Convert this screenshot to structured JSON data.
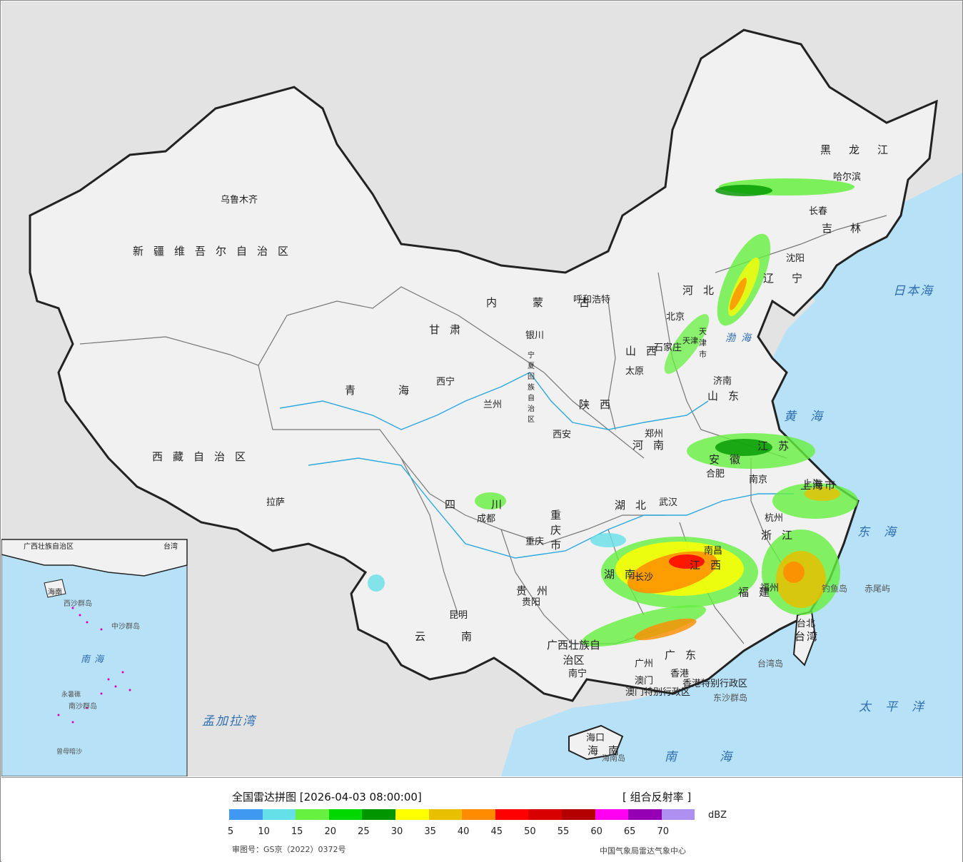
{
  "map": {
    "title_date": "全国雷达拼图 [2026-04-03 08:00:00]",
    "product": "[ 组合反射率 ]",
    "unit": "dBZ",
    "approval_number": "审图号：GS京（2022）0372号",
    "agency": "中国气象局雷达气象中心",
    "scale": {
      "colors": [
        "#3f99f0",
        "#66e0e8",
        "#66f040",
        "#00d800",
        "#009600",
        "#ffff00",
        "#e8c000",
        "#ff8c00",
        "#ff0000",
        "#d80000",
        "#b40000",
        "#ff00f0",
        "#9600b4",
        "#ad90f0"
      ],
      "ticks": [
        "5",
        "10",
        "15",
        "20",
        "25",
        "30",
        "35",
        "40",
        "45",
        "50",
        "55",
        "60",
        "65",
        "70"
      ]
    },
    "cities": [
      {
        "name": "乌鲁木齐"
      },
      {
        "name": "拉萨"
      },
      {
        "name": "西宁"
      },
      {
        "name": "兰州"
      },
      {
        "name": "银川"
      },
      {
        "name": "呼和浩特"
      },
      {
        "name": "北京"
      },
      {
        "name": "天津"
      },
      {
        "name": "石家庄"
      },
      {
        "name": "太原"
      },
      {
        "name": "济南"
      },
      {
        "name": "郑州"
      },
      {
        "name": "西安"
      },
      {
        "name": "成都"
      },
      {
        "name": "重庆"
      },
      {
        "name": "武汉"
      },
      {
        "name": "合肥"
      },
      {
        "name": "南京"
      },
      {
        "name": "上海"
      },
      {
        "name": "杭州"
      },
      {
        "name": "南昌"
      },
      {
        "name": "长沙"
      },
      {
        "name": "福州"
      },
      {
        "name": "台北"
      },
      {
        "name": "贵阳"
      },
      {
        "name": "昆明"
      },
      {
        "name": "南宁"
      },
      {
        "name": "广州"
      },
      {
        "name": "香港"
      },
      {
        "name": "澳门"
      },
      {
        "name": "海口"
      },
      {
        "name": "沈阳"
      },
      {
        "name": "长春"
      },
      {
        "name": "哈尔滨"
      }
    ],
    "provinces": [
      {
        "name": "新疆维吾尔自治区"
      },
      {
        "name": "西藏自治区"
      },
      {
        "name": "青海"
      },
      {
        "name": "甘肃"
      },
      {
        "name": "内蒙古"
      },
      {
        "name": "黑龙江"
      },
      {
        "name": "吉林"
      },
      {
        "name": "辽宁"
      },
      {
        "name": "河北"
      },
      {
        "name": "山西"
      },
      {
        "name": "陕西"
      },
      {
        "name": "山东"
      },
      {
        "name": "河南"
      },
      {
        "name": "四川"
      },
      {
        "name": "湖北"
      },
      {
        "name": "湖南"
      },
      {
        "name": "江西"
      },
      {
        "name": "福建"
      },
      {
        "name": "贵州"
      },
      {
        "name": "云南"
      },
      {
        "name": "广西壮族自治区"
      },
      {
        "name": "广东"
      },
      {
        "name": "江苏"
      },
      {
        "name": "安徽"
      },
      {
        "name": "浙江"
      },
      {
        "name": "台湾"
      },
      {
        "name": "海南"
      },
      {
        "name": "重庆市"
      },
      {
        "name": "上海市"
      },
      {
        "name": "宁夏回族自治区"
      },
      {
        "name": "天津市"
      },
      {
        "name": "香港特别行政区"
      },
      {
        "name": "澳门特别行政区"
      }
    ],
    "seas": [
      {
        "name": "日本海"
      },
      {
        "name": "黄海"
      },
      {
        "name": "东海"
      },
      {
        "name": "南海"
      },
      {
        "name": "太平洋"
      },
      {
        "name": "孟加拉湾"
      },
      {
        "name": "渤海"
      }
    ],
    "islands": [
      {
        "name": "钓鱼岛"
      },
      {
        "name": "赤尾屿"
      },
      {
        "name": "东沙群岛"
      },
      {
        "name": "台湾岛"
      },
      {
        "name": "海南岛"
      },
      {
        "name": "中沙群岛"
      },
      {
        "name": "西沙群岛"
      },
      {
        "name": "南沙群岛"
      },
      {
        "name": "永暑礁"
      },
      {
        "name": "曾母暗沙"
      }
    ],
    "inset_labels": {
      "title_1": "广西壮族自治区",
      "title_2": "海南",
      "title_3": "台湾",
      "title_4": "南海"
    }
  }
}
